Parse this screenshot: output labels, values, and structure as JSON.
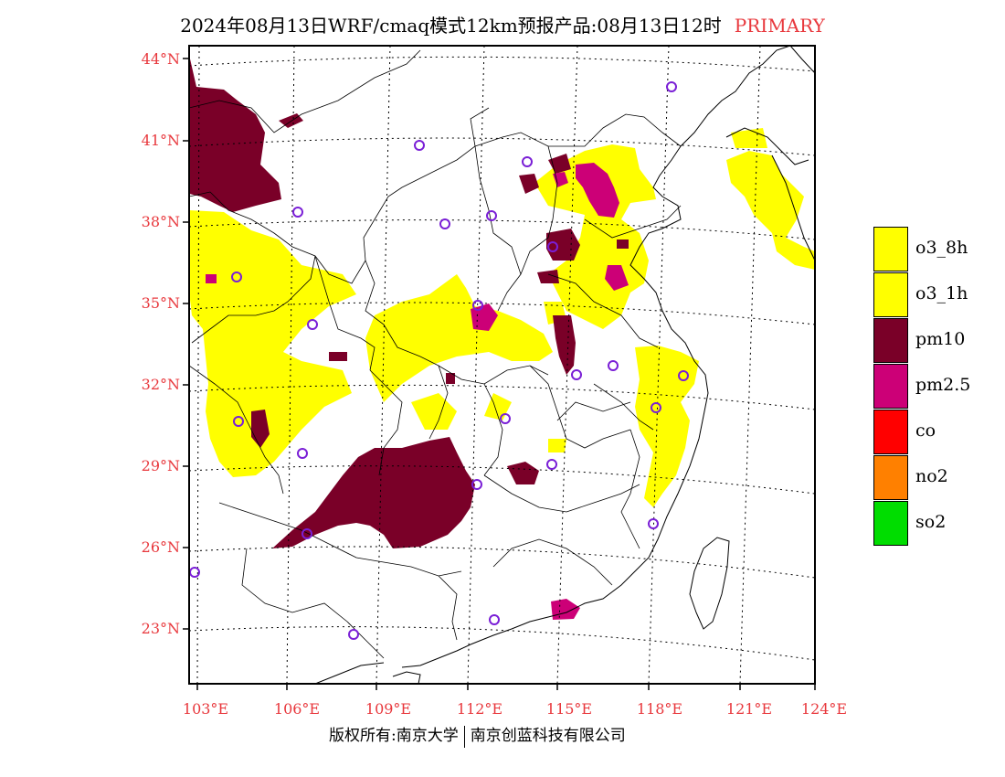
{
  "title": {
    "main": "2024年08月13日WRF/cmaq模式12km预报产品:08月13日12时",
    "tag": "PRIMARY"
  },
  "axes": {
    "lat_labels": [
      "44°N",
      "41°N",
      "38°N",
      "35°N",
      "32°N",
      "29°N",
      "26°N",
      "23°N"
    ],
    "lon_labels": [
      "103°E",
      "106°E",
      "109°E",
      "112°E",
      "115°E",
      "118°E",
      "121°E",
      "124°E"
    ]
  },
  "legend": {
    "items": [
      {
        "label": "o3_8h",
        "color": "#ffff00"
      },
      {
        "label": "o3_1h",
        "color": "#ffff00"
      },
      {
        "label": "pm10",
        "color": "#7a0028"
      },
      {
        "label": "pm2.5",
        "color": "#cc0077"
      },
      {
        "label": "co",
        "color": "#ff0000"
      },
      {
        "label": "no2",
        "color": "#ff8000"
      },
      {
        "label": "so2",
        "color": "#00dd00"
      }
    ]
  },
  "credit": {
    "left": "版权所有:南京大学",
    "right": "南京创蓝科技有限公司"
  },
  "colors": {
    "axis_label": "#e8383d",
    "station_marker": "#7a1fd6",
    "boundary": "#000000"
  }
}
